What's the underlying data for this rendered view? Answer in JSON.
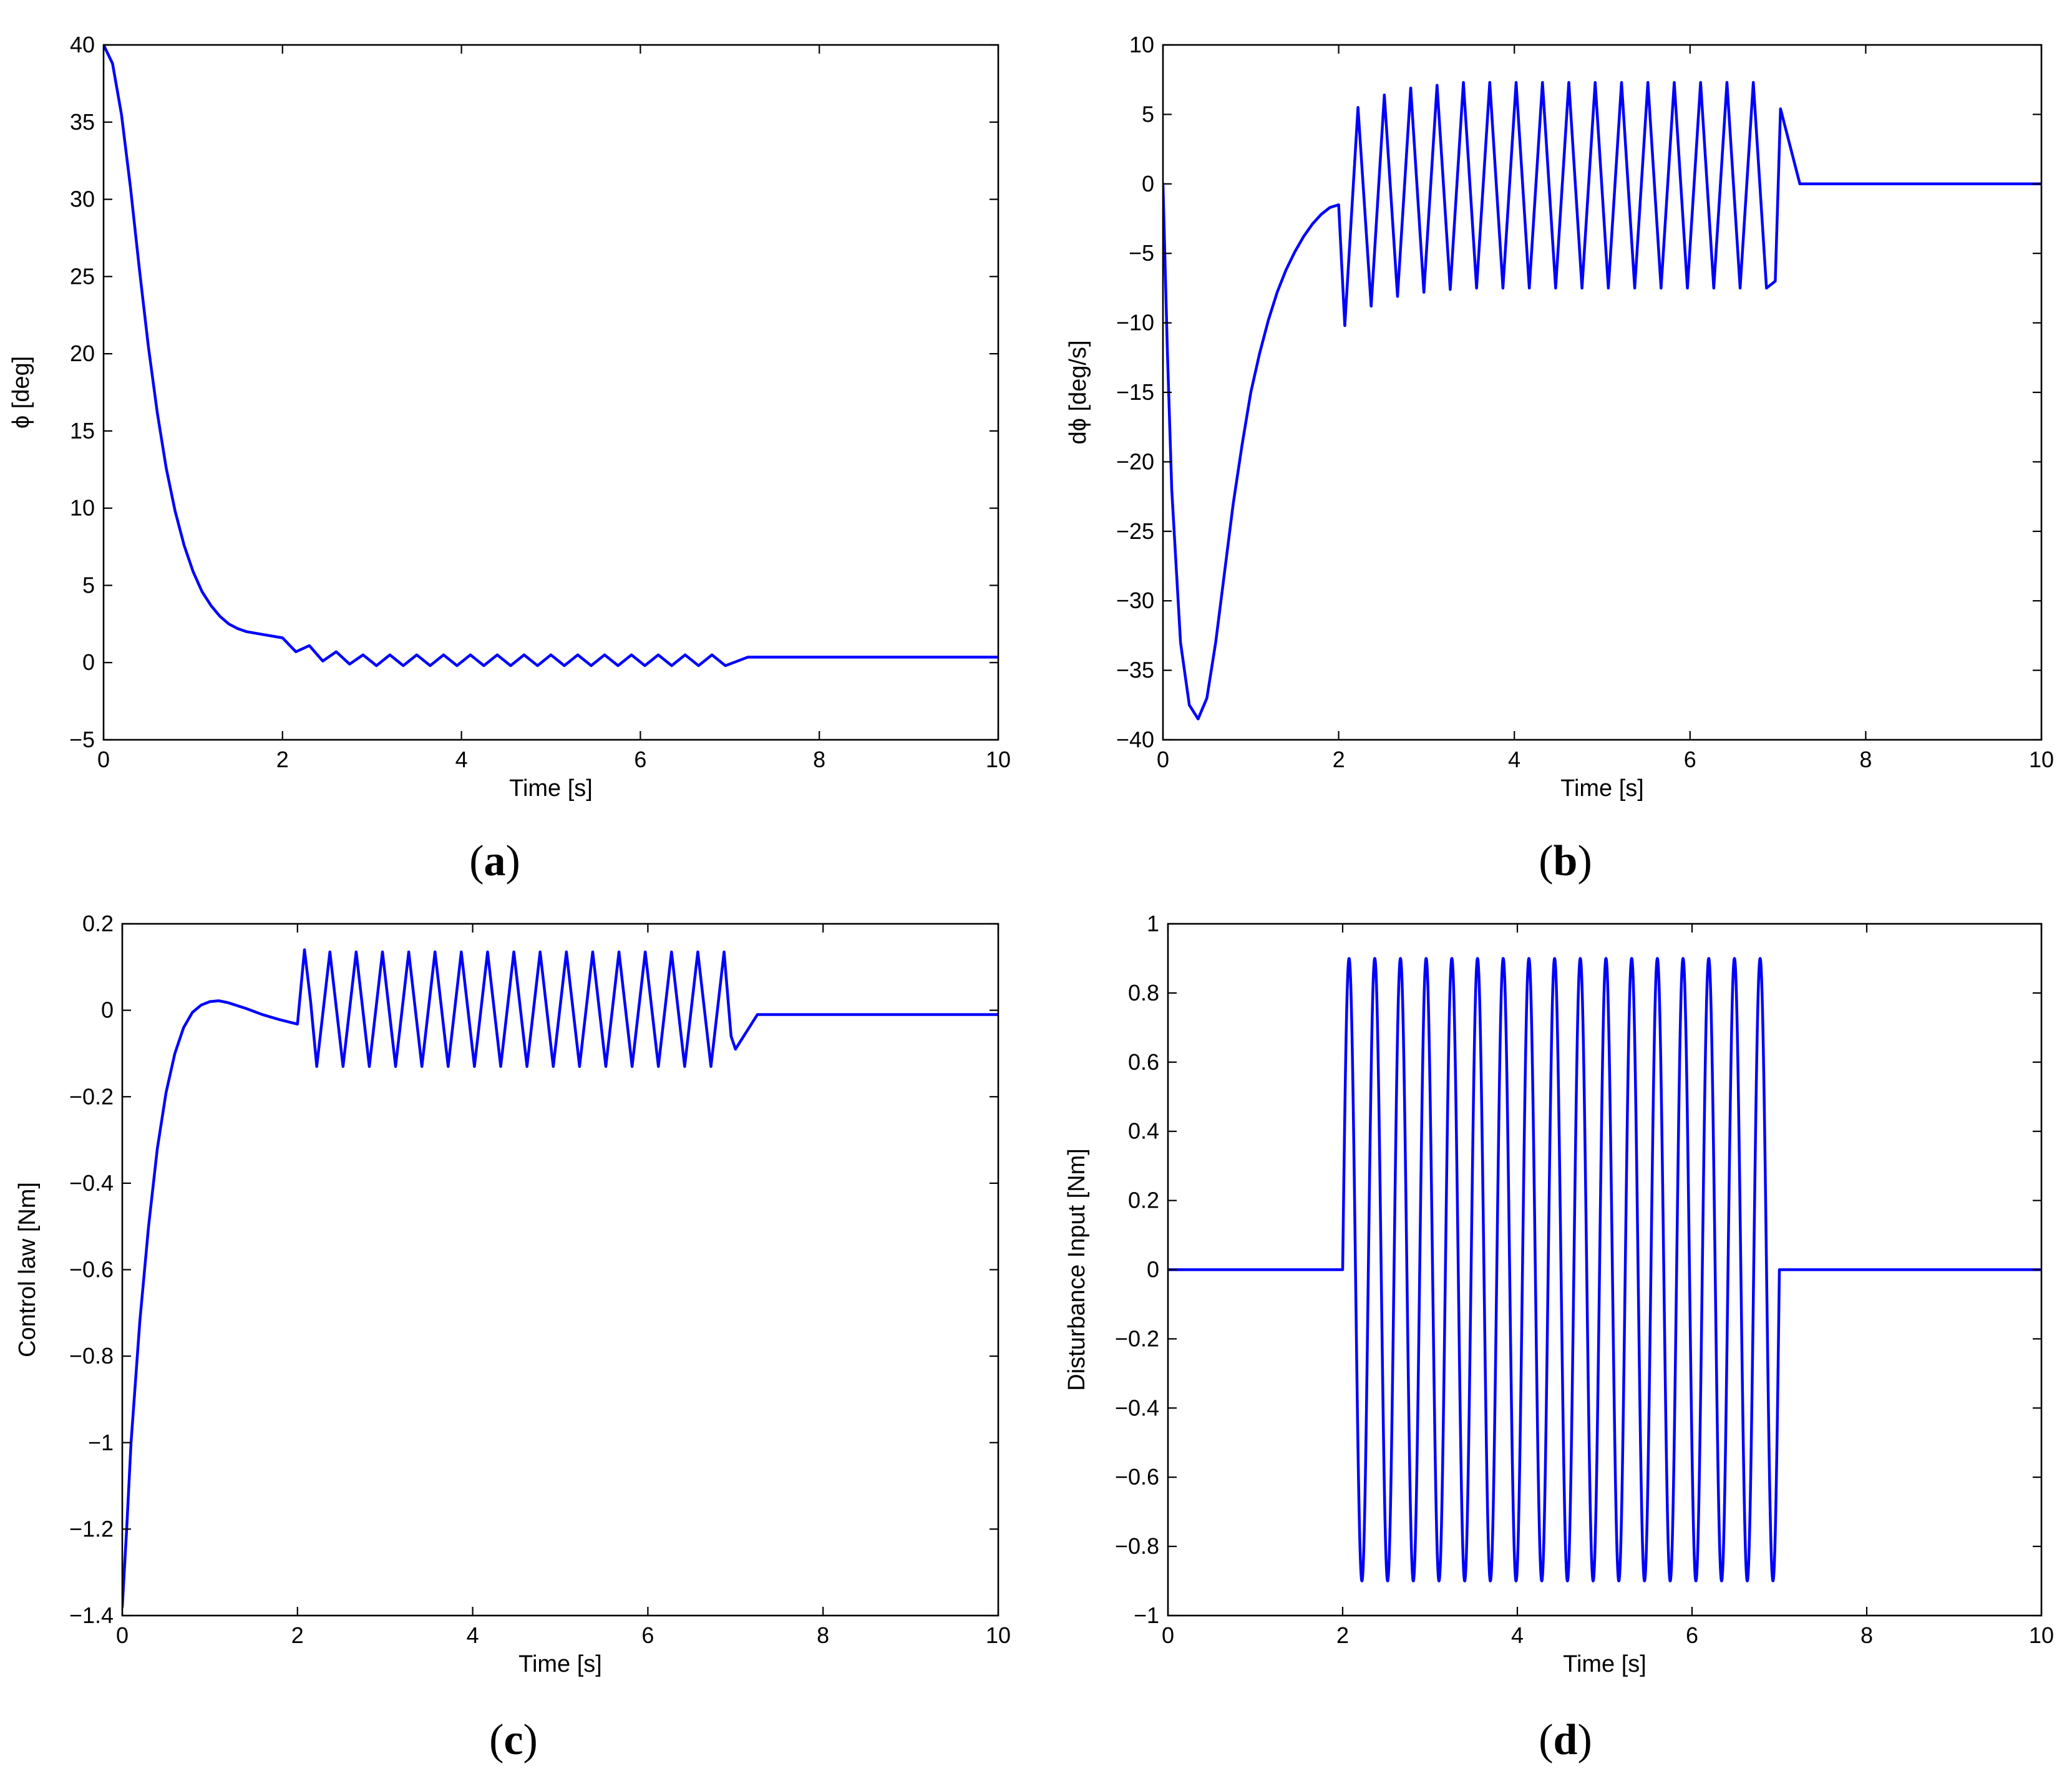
{
  "figure": {
    "colors": {
      "series": "#0000ff",
      "axes": "#000000",
      "background": "#ffffff"
    }
  },
  "chart_data": [
    {
      "panel": "a",
      "type": "line",
      "xlabel": "Time [s]",
      "ylabel": "ϕ [deg]",
      "xlim": [
        0,
        10
      ],
      "ylim": [
        -5,
        40
      ],
      "xticks": [
        0,
        2,
        4,
        6,
        8,
        10
      ],
      "yticks": [
        -5,
        0,
        5,
        10,
        15,
        20,
        25,
        30,
        35,
        40
      ],
      "xtick_labels": [
        "0",
        "2",
        "4",
        "6",
        "8",
        "10"
      ],
      "ytick_labels": [
        "−5",
        "0",
        "5",
        "10",
        "15",
        "20",
        "25",
        "30",
        "35",
        "40"
      ],
      "series": [
        {
          "name": "phi",
          "x": [
            0,
            0.1,
            0.2,
            0.3,
            0.4,
            0.5,
            0.6,
            0.7,
            0.8,
            0.9,
            1.0,
            1.1,
            1.2,
            1.3,
            1.4,
            1.5,
            1.6,
            1.7,
            1.8,
            1.9,
            2.0,
            2.15,
            2.3,
            2.45,
            2.6,
            2.75,
            2.9,
            3.05,
            3.2,
            3.35,
            3.5,
            3.65,
            3.8,
            3.95,
            4.1,
            4.25,
            4.4,
            4.55,
            4.7,
            4.85,
            5.0,
            5.15,
            5.3,
            5.45,
            5.6,
            5.75,
            5.9,
            6.05,
            6.2,
            6.35,
            6.5,
            6.65,
            6.8,
            6.95,
            7.2,
            8.0,
            9.0,
            10.0
          ],
          "y": [
            40,
            38.8,
            35.5,
            30.8,
            25.5,
            20.5,
            16.2,
            12.6,
            9.8,
            7.6,
            5.9,
            4.6,
            3.7,
            3.0,
            2.5,
            2.2,
            2.0,
            1.9,
            1.8,
            1.7,
            1.6,
            0.7,
            1.1,
            0.1,
            0.7,
            -0.1,
            0.5,
            -0.2,
            0.5,
            -0.2,
            0.5,
            -0.2,
            0.5,
            -0.2,
            0.5,
            -0.2,
            0.5,
            -0.2,
            0.5,
            -0.2,
            0.5,
            -0.2,
            0.5,
            -0.2,
            0.5,
            -0.2,
            0.5,
            -0.2,
            0.5,
            -0.2,
            0.5,
            -0.2,
            0.5,
            -0.2,
            0.35,
            0.35,
            0.35,
            0.35
          ]
        }
      ]
    },
    {
      "panel": "b",
      "type": "line",
      "xlabel": "Time [s]",
      "ylabel": "dϕ [deg/s]",
      "xlim": [
        0,
        10
      ],
      "ylim": [
        -40,
        10
      ],
      "xticks": [
        0,
        2,
        4,
        6,
        8,
        10
      ],
      "yticks": [
        -40,
        -35,
        -30,
        -25,
        -20,
        -15,
        -10,
        -5,
        0,
        5,
        10
      ],
      "xtick_labels": [
        "0",
        "2",
        "4",
        "6",
        "8",
        "10"
      ],
      "ytick_labels": [
        "−40",
        "−35",
        "−30",
        "−25",
        "−20",
        "−15",
        "−10",
        "−5",
        "0",
        "5",
        "10"
      ],
      "series": [
        {
          "name": "dphi",
          "x": [
            0,
            0.05,
            0.1,
            0.2,
            0.3,
            0.4,
            0.5,
            0.6,
            0.7,
            0.8,
            0.9,
            1.0,
            1.1,
            1.2,
            1.3,
            1.4,
            1.5,
            1.6,
            1.7,
            1.8,
            1.9,
            2.0,
            2.07,
            2.22,
            2.37,
            2.52,
            2.67,
            2.82,
            2.97,
            3.12,
            3.27,
            3.42,
            3.57,
            3.72,
            3.87,
            4.02,
            4.17,
            4.32,
            4.47,
            4.62,
            4.77,
            4.92,
            5.07,
            5.22,
            5.37,
            5.52,
            5.67,
            5.82,
            5.97,
            6.12,
            6.27,
            6.42,
            6.57,
            6.72,
            6.87,
            6.97,
            7.03,
            7.25,
            8.0,
            9.0,
            10.0
          ],
          "y": [
            0,
            -12,
            -22,
            -33,
            -37.5,
            -38.5,
            -37,
            -33,
            -28,
            -23,
            -18.8,
            -15,
            -12.2,
            -9.8,
            -7.8,
            -6.2,
            -4.9,
            -3.8,
            -2.9,
            -2.2,
            -1.7,
            -1.5,
            -10.2,
            5.5,
            -8.8,
            6.4,
            -8.1,
            6.9,
            -7.8,
            7.1,
            -7.6,
            7.3,
            -7.5,
            7.3,
            -7.5,
            7.3,
            -7.5,
            7.3,
            -7.5,
            7.3,
            -7.5,
            7.3,
            -7.5,
            7.3,
            -7.5,
            7.3,
            -7.5,
            7.3,
            -7.5,
            7.3,
            -7.5,
            7.3,
            -7.5,
            7.3,
            -7.5,
            -7.0,
            5.4,
            0,
            0,
            0,
            0
          ]
        }
      ]
    },
    {
      "panel": "c",
      "type": "line",
      "xlabel": "Time [s]",
      "ylabel": "Control law [Nm]",
      "xlim": [
        0,
        10
      ],
      "ylim": [
        -1.4,
        0.2
      ],
      "xticks": [
        0,
        2,
        4,
        6,
        8,
        10
      ],
      "yticks": [
        -1.4,
        -1.2,
        -1.0,
        -0.8,
        -0.6,
        -0.4,
        -0.2,
        0,
        0.2
      ],
      "xtick_labels": [
        "0",
        "2",
        "4",
        "6",
        "8",
        "10"
      ],
      "ytick_labels": [
        "−1.4",
        "−1.2",
        "−1",
        "−0.8",
        "−0.6",
        "−0.4",
        "−0.2",
        "0",
        "0.2"
      ],
      "series": [
        {
          "name": "control",
          "x": [
            0,
            0.05,
            0.1,
            0.2,
            0.3,
            0.4,
            0.5,
            0.6,
            0.7,
            0.8,
            0.9,
            1.0,
            1.1,
            1.2,
            1.4,
            1.6,
            1.8,
            2.0,
            2.08,
            2.15,
            2.22,
            2.37,
            2.52,
            2.67,
            2.82,
            2.97,
            3.12,
            3.27,
            3.42,
            3.57,
            3.72,
            3.87,
            4.02,
            4.17,
            4.32,
            4.47,
            4.62,
            4.77,
            4.92,
            5.07,
            5.22,
            5.37,
            5.52,
            5.67,
            5.82,
            5.97,
            6.12,
            6.27,
            6.42,
            6.57,
            6.72,
            6.87,
            6.95,
            7.0,
            7.25,
            8.0,
            9.0,
            10.0
          ],
          "y": [
            -1.38,
            -1.2,
            -1.0,
            -0.72,
            -0.5,
            -0.32,
            -0.19,
            -0.1,
            -0.04,
            -0.005,
            0.012,
            0.02,
            0.022,
            0.018,
            0.005,
            -0.01,
            -0.022,
            -0.032,
            0.14,
            0.02,
            -0.13,
            0.135,
            -0.13,
            0.135,
            -0.13,
            0.135,
            -0.13,
            0.135,
            -0.13,
            0.135,
            -0.13,
            0.135,
            -0.13,
            0.135,
            -0.13,
            0.135,
            -0.13,
            0.135,
            -0.13,
            0.135,
            -0.13,
            0.135,
            -0.13,
            0.135,
            -0.13,
            0.135,
            -0.13,
            0.135,
            -0.13,
            0.135,
            -0.13,
            0.135,
            -0.06,
            -0.09,
            -0.01,
            -0.01,
            -0.01,
            -0.01
          ]
        }
      ]
    },
    {
      "panel": "d",
      "type": "line",
      "xlabel": "Time [s]",
      "ylabel": "Disturbance Input [Nm]",
      "xlim": [
        0,
        10
      ],
      "ylim": [
        -1,
        1
      ],
      "xticks": [
        0,
        2,
        4,
        6,
        8,
        10
      ],
      "yticks": [
        -1,
        -0.8,
        -0.6,
        -0.4,
        -0.2,
        0,
        0.2,
        0.4,
        0.6,
        0.8,
        1
      ],
      "xtick_labels": [
        "0",
        "2",
        "4",
        "6",
        "8",
        "10"
      ],
      "ytick_labels": [
        "−1",
        "−0.8",
        "−0.6",
        "−0.4",
        "−0.2",
        "0",
        "0.2",
        "0.4",
        "0.6",
        "0.8",
        "1"
      ],
      "series": [
        {
          "name": "disturbance",
          "function": "0.9*sin(2*pi*3.4*(t-2)) for 2<=t<=7, else 0",
          "amplitude": 0.9,
          "frequency_hz": 3.4,
          "t_start": 2,
          "t_end": 7
        }
      ]
    }
  ],
  "panels": {
    "a": {
      "open": "(",
      "letter": "a",
      "close": ")"
    },
    "b": {
      "open": "(",
      "letter": "b",
      "close": ")"
    },
    "c": {
      "open": "(",
      "letter": "c",
      "close": ")"
    },
    "d": {
      "open": "(",
      "letter": "d",
      "close": ")"
    }
  }
}
